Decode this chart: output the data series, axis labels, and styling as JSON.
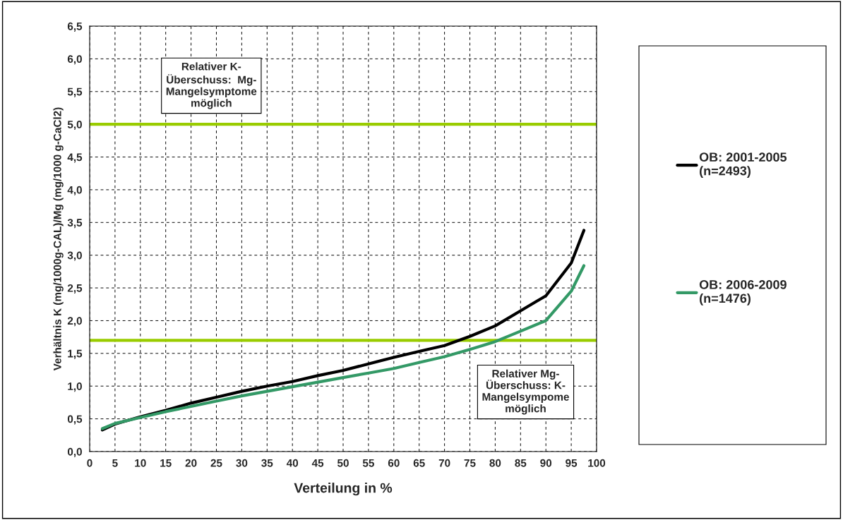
{
  "chart_data": {
    "type": "line",
    "xlabel": "Verteilung in %",
    "ylabel": "Verhältnis K (mg/1000g-CAL)/Mg (mg/1000 g-CaCl2)",
    "x": [
      2.5,
      5,
      10,
      15,
      20,
      25,
      30,
      35,
      40,
      45,
      50,
      55,
      60,
      65,
      70,
      75,
      80,
      85,
      90,
      95,
      97.5
    ],
    "series": [
      {
        "name": "OB: 2001-2005\n(n=2493)",
        "color": "#000000",
        "values": [
          0.33,
          0.42,
          0.53,
          0.63,
          0.74,
          0.83,
          0.92,
          1.0,
          1.07,
          1.16,
          1.24,
          1.34,
          1.44,
          1.53,
          1.62,
          1.76,
          1.92,
          2.15,
          2.38,
          2.88,
          3.38
        ]
      },
      {
        "name": "OB: 2006-2009\n(n=1476)",
        "color": "#339966",
        "values": [
          0.35,
          0.43,
          0.52,
          0.61,
          0.69,
          0.77,
          0.85,
          0.92,
          0.99,
          1.06,
          1.13,
          1.2,
          1.27,
          1.36,
          1.45,
          1.56,
          1.68,
          1.84,
          2.0,
          2.45,
          2.84
        ]
      }
    ],
    "ref_lines": [
      {
        "axis": "y",
        "value": 5.0,
        "color": "#99cc00"
      },
      {
        "axis": "y",
        "value": 1.7,
        "color": "#99cc00"
      }
    ],
    "annotations": [
      "Relativer K-\nÜberschuss:  Mg-\nMangelsymptome\nmöglich",
      "Relativer Mg-\nÜberschuss: K-\nMangelsympome\nmöglich"
    ],
    "xlim": [
      0,
      100
    ],
    "xticks": [
      0,
      5,
      10,
      15,
      20,
      25,
      30,
      35,
      40,
      45,
      50,
      55,
      60,
      65,
      70,
      75,
      80,
      85,
      90,
      95,
      100
    ],
    "ylim": [
      0,
      6.5
    ],
    "yticks": [
      {
        "value": 0,
        "label": "0,0"
      },
      {
        "value": 0.5,
        "label": "0,5"
      },
      {
        "value": 1,
        "label": "1,0"
      },
      {
        "value": 1.5,
        "label": "1,5"
      },
      {
        "value": 2,
        "label": "2,0"
      },
      {
        "value": 2.5,
        "label": "2,5"
      },
      {
        "value": 3,
        "label": "3,0"
      },
      {
        "value": 3.5,
        "label": "3,5"
      },
      {
        "value": 4,
        "label": "4,0"
      },
      {
        "value": 4.5,
        "label": "4,5"
      },
      {
        "value": 5,
        "label": "5,0"
      },
      {
        "value": 5.5,
        "label": "5,5"
      },
      {
        "value": 6,
        "label": "6,0"
      },
      {
        "value": 6.5,
        "label": "6,5"
      }
    ],
    "grid": true,
    "legend": "right",
    "line_style": "solid",
    "marker": "none"
  }
}
